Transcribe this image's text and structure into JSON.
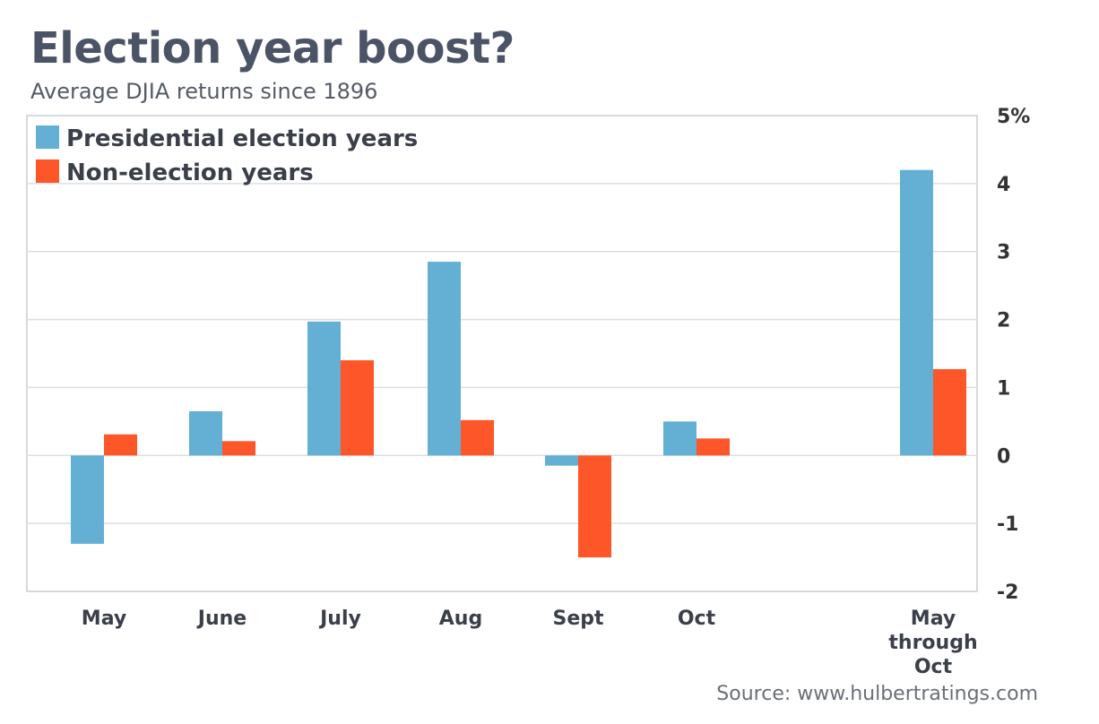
{
  "chart_data": {
    "type": "bar",
    "title": "Election year boost?",
    "subtitle": "Average DJIA returns since 1896",
    "source": "Source: www.hulbertratings.com",
    "categories": [
      [
        "May"
      ],
      [
        "June"
      ],
      [
        "July"
      ],
      [
        "Aug"
      ],
      [
        "Sept"
      ],
      [
        "Oct"
      ],
      [
        "May",
        "through",
        "Oct"
      ]
    ],
    "series": [
      {
        "name": "Presidential election years",
        "color": "#64afd4",
        "values": [
          -1.3,
          0.65,
          1.97,
          2.85,
          -0.15,
          0.5,
          4.2
        ]
      },
      {
        "name": "Non-election years",
        "color": "#fd5628",
        "values": [
          0.31,
          0.21,
          1.4,
          0.52,
          -1.5,
          0.25,
          1.27
        ]
      }
    ],
    "ylim": [
      -2,
      5
    ],
    "yticks": [
      -2,
      -1,
      0,
      1,
      2,
      3,
      4,
      5
    ],
    "ytick_labels": [
      "-2",
      "-1",
      "0",
      "1",
      "2",
      "3",
      "4",
      "5%"
    ],
    "y_axis_side": "right",
    "grid": true,
    "legend_position": "top-left"
  }
}
